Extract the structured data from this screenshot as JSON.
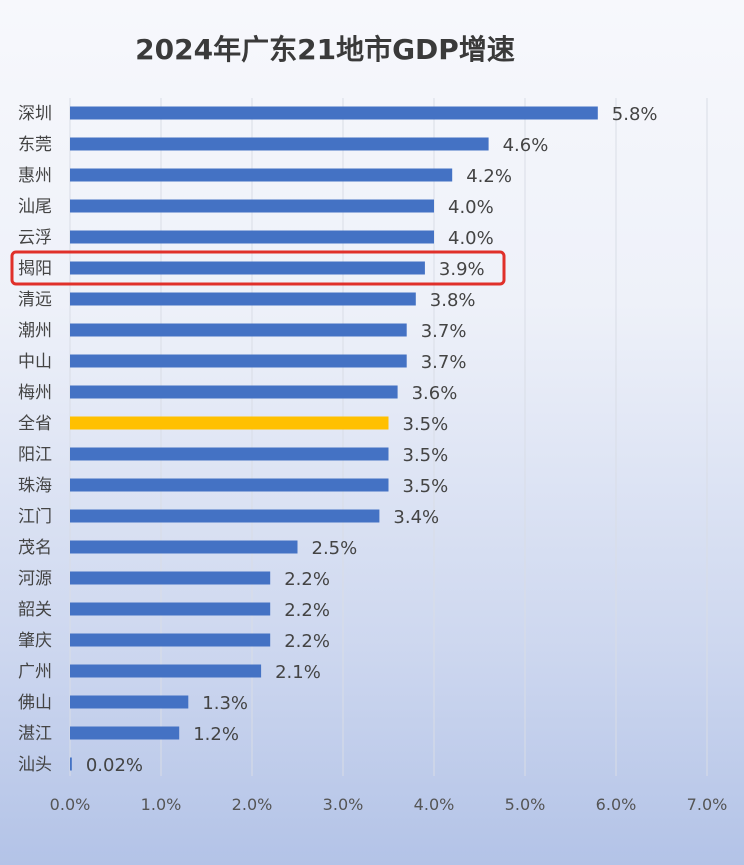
{
  "chart_data": {
    "type": "bar",
    "orientation": "horizontal",
    "title": "2024年广东21地市GDP增速",
    "categories": [
      "深圳",
      "东莞",
      "惠州",
      "汕尾",
      "云浮",
      "揭阳",
      "清远",
      "潮州",
      "中山",
      "梅州",
      "全省",
      "阳江",
      "珠海",
      "江门",
      "茂名",
      "河源",
      "韶关",
      "肇庆",
      "广州",
      "佛山",
      "湛江",
      "汕头"
    ],
    "values": [
      5.8,
      4.6,
      4.2,
      4.0,
      4.0,
      3.9,
      3.8,
      3.7,
      3.7,
      3.6,
      3.5,
      3.5,
      3.5,
      3.4,
      2.5,
      2.2,
      2.2,
      2.2,
      2.1,
      1.3,
      1.2,
      0.02
    ],
    "value_labels": [
      "5.8%",
      "4.6%",
      "4.2%",
      "4.0%",
      "4.0%",
      "3.9%",
      "3.8%",
      "3.7%",
      "3.7%",
      "3.6%",
      "3.5%",
      "3.5%",
      "3.5%",
      "3.4%",
      "2.5%",
      "2.2%",
      "2.2%",
      "2.2%",
      "2.1%",
      "1.3%",
      "1.2%",
      "0.02%"
    ],
    "xlim": [
      0,
      7
    ],
    "x_ticks": [
      "0.0%",
      "1.0%",
      "2.0%",
      "3.0%",
      "4.0%",
      "5.0%",
      "6.0%",
      "7.0%"
    ],
    "grid": true,
    "colors": {
      "bar": "#4472c4",
      "highlight_bar": "#ffc000",
      "highlight_box": "#e0302a"
    },
    "highlighted_bar_category": "全省",
    "boxed_category": "揭阳"
  }
}
